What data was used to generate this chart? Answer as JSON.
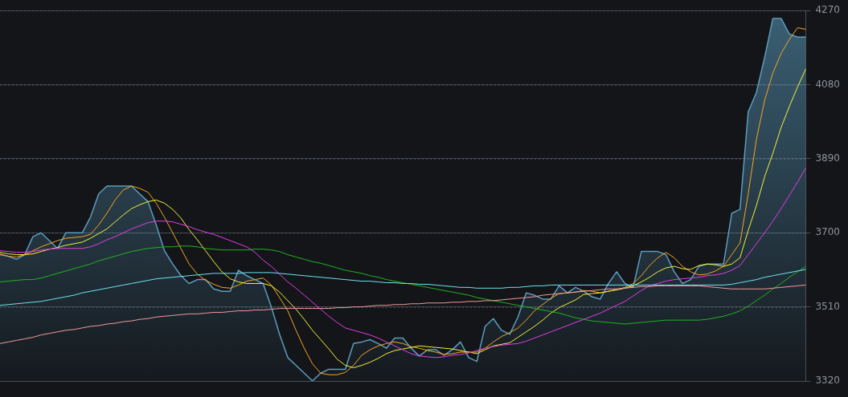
{
  "chart_data": {
    "type": "line",
    "categories": [
      null,
      null,
      null,
      null,
      null,
      null,
      null,
      null,
      null,
      null,
      null,
      null,
      null,
      null,
      null,
      null,
      null,
      null,
      null,
      null,
      null,
      null,
      null,
      null,
      null,
      null,
      null,
      null,
      null,
      null,
      null,
      null,
      null,
      null,
      null,
      null,
      null,
      null,
      null,
      null,
      null,
      null,
      null,
      null,
      null,
      null,
      null,
      null,
      null,
      null,
      null,
      null,
      null,
      null,
      null,
      null,
      null,
      null,
      null,
      null,
      null,
      null,
      null,
      null,
      null,
      null,
      null,
      null,
      null,
      null,
      null,
      null,
      null,
      null,
      null,
      null,
      null,
      null,
      null,
      null,
      null,
      null,
      null,
      null,
      null,
      null,
      null,
      null,
      null,
      null,
      null,
      null,
      null,
      null,
      null,
      null,
      null,
      null,
      null
    ],
    "ylim": [
      3320,
      4270
    ],
    "yticks": [
      3320,
      3510,
      3700,
      3890,
      4080,
      4270
    ],
    "grid": "y",
    "tick_labels": "y",
    "marker": "none",
    "line_style": "solid",
    "series": [
      {
        "type": "area",
        "color": "#5b9dbf",
        "values": [
          3644,
          3640,
          3632,
          3644,
          3690,
          3700,
          3680,
          3660,
          3700,
          3700,
          3700,
          3740,
          3800,
          3820,
          3820,
          3820,
          3820,
          3800,
          3780,
          3720,
          3654,
          3620,
          3590,
          3570,
          3580,
          3580,
          3556,
          3550,
          3550,
          3604,
          3590,
          3580,
          3570,
          3510,
          3440,
          3380,
          3360,
          3340,
          3320,
          3340,
          3350,
          3350,
          3350,
          3416,
          3420,
          3426,
          3416,
          3404,
          3430,
          3430,
          3404,
          3384,
          3400,
          3400,
          3386,
          3400,
          3420,
          3380,
          3370,
          3460,
          3480,
          3450,
          3440,
          3484,
          3546,
          3540,
          3530,
          3530,
          3564,
          3546,
          3560,
          3550,
          3536,
          3530,
          3570,
          3600,
          3570,
          3560,
          3652,
          3652,
          3652,
          3644,
          3600,
          3570,
          3580,
          3614,
          3620,
          3620,
          3620,
          3750,
          3760,
          4010,
          4060,
          4150,
          4250,
          4250,
          4210,
          4202,
          4202
        ]
      },
      {
        "type": "line",
        "color": "#f5a623",
        "values": [
          3646,
          3640,
          3638,
          3644,
          3654,
          3664,
          3672,
          3680,
          3686,
          3688,
          3690,
          3696,
          3720,
          3750,
          3784,
          3810,
          3820,
          3814,
          3804,
          3776,
          3740,
          3700,
          3660,
          3620,
          3594,
          3578,
          3568,
          3560,
          3558,
          3566,
          3576,
          3580,
          3584,
          3566,
          3534,
          3500,
          3450,
          3404,
          3364,
          3340,
          3336,
          3336,
          3342,
          3360,
          3386,
          3400,
          3410,
          3416,
          3420,
          3416,
          3408,
          3404,
          3398,
          3394,
          3388,
          3390,
          3394,
          3394,
          3394,
          3404,
          3420,
          3434,
          3444,
          3456,
          3476,
          3500,
          3516,
          3532,
          3544,
          3546,
          3548,
          3552,
          3550,
          3546,
          3550,
          3554,
          3560,
          3570,
          3590,
          3616,
          3636,
          3650,
          3636,
          3614,
          3600,
          3592,
          3594,
          3602,
          3614,
          3644,
          3674,
          3800,
          3940,
          4040,
          4110,
          4160,
          4196,
          4226,
          4222
        ]
      },
      {
        "type": "line",
        "color": "#f2f23a",
        "values": [
          3650,
          3646,
          3644,
          3644,
          3646,
          3652,
          3658,
          3662,
          3668,
          3672,
          3676,
          3686,
          3698,
          3710,
          3728,
          3746,
          3762,
          3772,
          3780,
          3784,
          3776,
          3760,
          3738,
          3708,
          3682,
          3654,
          3626,
          3600,
          3582,
          3574,
          3570,
          3570,
          3570,
          3564,
          3548,
          3526,
          3504,
          3478,
          3450,
          3426,
          3402,
          3376,
          3360,
          3354,
          3360,
          3368,
          3378,
          3390,
          3398,
          3402,
          3406,
          3410,
          3408,
          3406,
          3404,
          3402,
          3398,
          3394,
          3390,
          3400,
          3410,
          3414,
          3418,
          3432,
          3446,
          3460,
          3476,
          3494,
          3508,
          3518,
          3528,
          3542,
          3544,
          3546,
          3550,
          3554,
          3558,
          3564,
          3574,
          3586,
          3600,
          3610,
          3614,
          3608,
          3606,
          3616,
          3620,
          3618,
          3614,
          3620,
          3636,
          3706,
          3770,
          3844,
          3904,
          3970,
          4024,
          4074,
          4120
        ]
      },
      {
        "type": "line",
        "color": "#e23fe2",
        "values": [
          3654,
          3652,
          3650,
          3650,
          3652,
          3656,
          3658,
          3660,
          3660,
          3660,
          3660,
          3664,
          3672,
          3682,
          3690,
          3700,
          3710,
          3718,
          3726,
          3730,
          3730,
          3728,
          3722,
          3716,
          3708,
          3702,
          3696,
          3688,
          3680,
          3672,
          3664,
          3650,
          3630,
          3614,
          3594,
          3574,
          3558,
          3540,
          3522,
          3504,
          3486,
          3470,
          3456,
          3450,
          3444,
          3438,
          3430,
          3420,
          3410,
          3400,
          3390,
          3384,
          3382,
          3380,
          3382,
          3386,
          3388,
          3392,
          3398,
          3404,
          3408,
          3412,
          3414,
          3416,
          3422,
          3430,
          3438,
          3446,
          3454,
          3462,
          3470,
          3478,
          3486,
          3494,
          3504,
          3514,
          3524,
          3538,
          3552,
          3564,
          3570,
          3576,
          3580,
          3582,
          3584,
          3586,
          3590,
          3592,
          3596,
          3604,
          3616,
          3644,
          3672,
          3700,
          3730,
          3762,
          3796,
          3830,
          3866
        ]
      },
      {
        "type": "line",
        "color": "#22b322",
        "values": [
          3574,
          3576,
          3578,
          3580,
          3580,
          3584,
          3590,
          3596,
          3602,
          3608,
          3614,
          3620,
          3628,
          3634,
          3640,
          3646,
          3652,
          3656,
          3660,
          3662,
          3664,
          3664,
          3666,
          3666,
          3664,
          3660,
          3658,
          3656,
          3656,
          3656,
          3656,
          3658,
          3658,
          3656,
          3652,
          3644,
          3638,
          3632,
          3626,
          3622,
          3616,
          3610,
          3604,
          3600,
          3596,
          3590,
          3586,
          3580,
          3576,
          3572,
          3568,
          3564,
          3560,
          3556,
          3552,
          3548,
          3544,
          3540,
          3534,
          3530,
          3526,
          3522,
          3518,
          3514,
          3510,
          3506,
          3502,
          3498,
          3494,
          3488,
          3482,
          3478,
          3474,
          3472,
          3470,
          3468,
          3466,
          3468,
          3470,
          3472,
          3474,
          3476,
          3476,
          3476,
          3476,
          3476,
          3478,
          3482,
          3486,
          3492,
          3500,
          3512,
          3526,
          3540,
          3556,
          3570,
          3586,
          3600,
          3614
        ]
      },
      {
        "type": "line",
        "color": "#6fe3f2",
        "values": [
          3514,
          3516,
          3518,
          3520,
          3522,
          3524,
          3528,
          3532,
          3536,
          3540,
          3546,
          3550,
          3554,
          3558,
          3562,
          3566,
          3570,
          3574,
          3578,
          3582,
          3584,
          3586,
          3588,
          3590,
          3592,
          3594,
          3596,
          3596,
          3596,
          3596,
          3598,
          3598,
          3598,
          3598,
          3596,
          3594,
          3592,
          3590,
          3588,
          3586,
          3584,
          3582,
          3580,
          3578,
          3576,
          3576,
          3574,
          3572,
          3572,
          3570,
          3570,
          3568,
          3568,
          3566,
          3564,
          3562,
          3560,
          3560,
          3558,
          3558,
          3558,
          3558,
          3560,
          3560,
          3562,
          3564,
          3564,
          3566,
          3566,
          3566,
          3566,
          3566,
          3566,
          3566,
          3566,
          3566,
          3566,
          3566,
          3566,
          3566,
          3566,
          3566,
          3566,
          3566,
          3566,
          3566,
          3566,
          3566,
          3566,
          3568,
          3572,
          3576,
          3580,
          3586,
          3590,
          3594,
          3598,
          3602,
          3606
        ]
      },
      {
        "type": "line",
        "color": "#f29a9a",
        "values": [
          3416,
          3420,
          3424,
          3428,
          3432,
          3438,
          3442,
          3446,
          3450,
          3452,
          3456,
          3460,
          3462,
          3466,
          3468,
          3472,
          3474,
          3478,
          3480,
          3484,
          3486,
          3488,
          3490,
          3492,
          3492,
          3494,
          3496,
          3496,
          3498,
          3500,
          3500,
          3502,
          3502,
          3504,
          3506,
          3506,
          3506,
          3506,
          3506,
          3506,
          3506,
          3508,
          3508,
          3510,
          3510,
          3512,
          3514,
          3514,
          3516,
          3516,
          3518,
          3518,
          3520,
          3520,
          3520,
          3522,
          3522,
          3524,
          3524,
          3526,
          3526,
          3528,
          3530,
          3532,
          3534,
          3536,
          3540,
          3542,
          3544,
          3546,
          3548,
          3550,
          3552,
          3554,
          3556,
          3556,
          3558,
          3560,
          3562,
          3562,
          3564,
          3564,
          3564,
          3564,
          3564,
          3564,
          3562,
          3560,
          3558,
          3556,
          3556,
          3556,
          3556,
          3556,
          3558,
          3560,
          3562,
          3564,
          3566
        ]
      }
    ]
  }
}
